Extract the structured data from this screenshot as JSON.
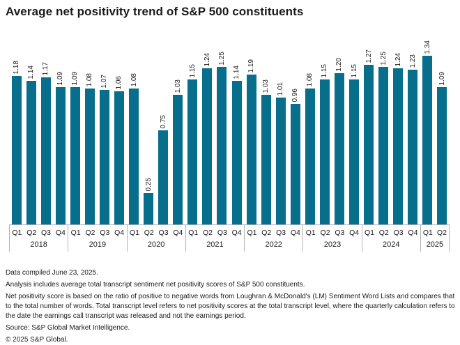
{
  "title": "Average net positivity trend of S&P 500 constituents",
  "colors": {
    "bar": "#076e8c",
    "axis_line": "#b3b3b3",
    "text": "#1a1a1a"
  },
  "chart_data": {
    "type": "bar",
    "title": "Average net positivity trend of S&P 500 constituents",
    "xlabel": "",
    "ylabel": "",
    "ylim": [
      0,
      1.4
    ],
    "grid": false,
    "legend": "none",
    "value_labels": "rotated 90deg above bars, 2 decimals",
    "groups": [
      {
        "year": "2018",
        "quarters": [
          "Q1",
          "Q2",
          "Q3",
          "Q4"
        ],
        "values": [
          1.18,
          1.14,
          1.17,
          1.09
        ]
      },
      {
        "year": "2019",
        "quarters": [
          "Q1",
          "Q2",
          "Q3",
          "Q4"
        ],
        "values": [
          1.09,
          1.08,
          1.07,
          1.06
        ]
      },
      {
        "year": "2020",
        "quarters": [
          "Q1",
          "Q2",
          "Q3",
          "Q4"
        ],
        "values": [
          1.08,
          0.25,
          0.75,
          1.03
        ]
      },
      {
        "year": "2021",
        "quarters": [
          "Q1",
          "Q2",
          "Q3",
          "Q4"
        ],
        "values": [
          1.15,
          1.24,
          1.25,
          1.14
        ]
      },
      {
        "year": "2022",
        "quarters": [
          "Q1",
          "Q2",
          "Q3",
          "Q4"
        ],
        "values": [
          1.19,
          1.03,
          1.01,
          0.96
        ]
      },
      {
        "year": "2023",
        "quarters": [
          "Q1",
          "Q2",
          "Q3",
          "Q4"
        ],
        "values": [
          1.08,
          1.15,
          1.2,
          1.15
        ]
      },
      {
        "year": "2024",
        "quarters": [
          "Q1",
          "Q2",
          "Q3",
          "Q4"
        ],
        "values": [
          1.27,
          1.25,
          1.24,
          1.23
        ]
      },
      {
        "year": "2025",
        "quarters": [
          "Q1",
          "Q2"
        ],
        "values": [
          1.34,
          1.09
        ]
      }
    ]
  },
  "footnotes": {
    "compiled": "Data compiled June 23, 2025.",
    "analysis": "Analysis includes average total transcript sentiment net positivity scores of S&P 500 constituents.",
    "note": "Net positivity score is based on the ratio of positive to negative words from Loughran & McDonald's (LM) Sentiment Word Lists and compares that to the total number of words. Total transcript level refers to net positivity scores at the total transcript level, where the quarterly calculation refers to the date the earnings call transcript was released and not the earnings period.",
    "source": "Source: S&P Global Market Intelligence.",
    "copyright": "© 2025 S&P Global."
  }
}
